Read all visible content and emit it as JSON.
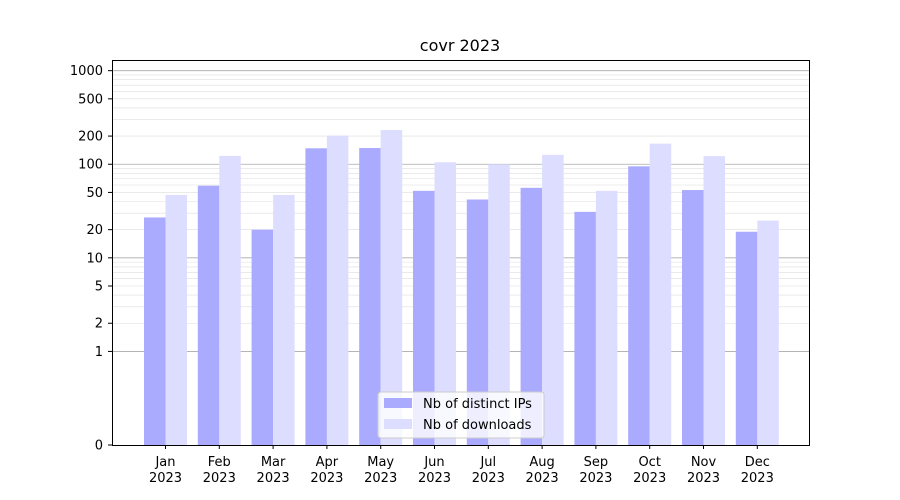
{
  "chart_data": {
    "type": "bar",
    "title": "covr 2023",
    "categories": [
      "Jan",
      "Feb",
      "Mar",
      "Apr",
      "May",
      "Jun",
      "Jul",
      "Aug",
      "Sep",
      "Oct",
      "Nov",
      "Dec"
    ],
    "category_sublabel": "2023",
    "y_scale": "symlog",
    "y_ticks": [
      0,
      1,
      2,
      5,
      10,
      20,
      50,
      100,
      200,
      500,
      1000
    ],
    "ylim": [
      0,
      1300
    ],
    "series": [
      {
        "name": "Nb of distinct IPs",
        "color": "#aaaaff",
        "values": [
          27,
          59,
          20,
          148,
          149,
          52,
          42,
          56,
          31,
          95,
          53,
          19
        ]
      },
      {
        "name": "Nb of downloads",
        "color": "#ddddff",
        "values": [
          47,
          123,
          47,
          202,
          232,
          105,
          100,
          126,
          52,
          166,
          122,
          25
        ]
      }
    ],
    "legend_position": "lower-center",
    "grid": true
  }
}
